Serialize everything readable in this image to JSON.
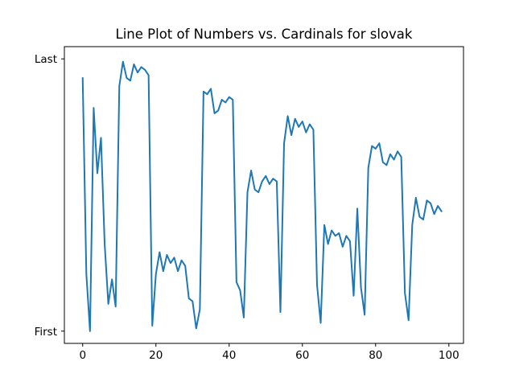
{
  "chart_data": {
    "type": "line",
    "title": "Line Plot of Numbers vs. Cardinals for slovak",
    "xlabel": "",
    "ylabel": "",
    "xlim": [
      -5,
      104
    ],
    "ylim": [
      -0.045,
      1.045
    ],
    "grid": false,
    "x_ticks": [
      0,
      20,
      40,
      60,
      80,
      100
    ],
    "x_tick_labels": [
      "0",
      "20",
      "40",
      "60",
      "80",
      "100"
    ],
    "y_ticks": [
      0,
      1
    ],
    "y_tick_labels": [
      "First",
      "Last"
    ],
    "series_color": "#1f77b4",
    "series": [
      {
        "x": [
          0,
          1,
          2,
          3,
          4,
          5,
          6,
          7,
          8,
          9,
          10,
          11,
          12,
          13,
          14,
          15,
          16,
          17,
          18,
          19,
          20,
          21,
          22,
          23,
          24,
          25,
          26,
          27,
          28,
          29,
          30,
          31,
          32,
          33,
          34,
          35,
          36,
          37,
          38,
          39,
          40,
          41,
          42,
          43,
          44,
          45,
          46,
          47,
          48,
          49,
          50,
          51,
          52,
          53,
          54,
          55,
          56,
          57,
          58,
          59,
          60,
          61,
          62,
          63,
          64,
          65,
          66,
          67,
          68,
          69,
          70,
          71,
          72,
          73,
          74,
          75,
          76,
          77,
          78,
          79,
          80,
          81,
          82,
          83,
          84,
          85,
          86,
          87,
          88,
          89,
          90,
          91,
          92,
          93,
          94,
          95,
          96,
          97,
          98
        ],
        "values": [
          0.93,
          0.21,
          0.0,
          0.82,
          0.58,
          0.71,
          0.32,
          0.1,
          0.19,
          0.09,
          0.9,
          0.99,
          0.93,
          0.92,
          0.98,
          0.95,
          0.97,
          0.96,
          0.94,
          0.02,
          0.21,
          0.29,
          0.22,
          0.28,
          0.25,
          0.27,
          0.22,
          0.26,
          0.24,
          0.12,
          0.11,
          0.01,
          0.08,
          0.88,
          0.87,
          0.89,
          0.8,
          0.81,
          0.85,
          0.84,
          0.86,
          0.85,
          0.18,
          0.15,
          0.05,
          0.51,
          0.59,
          0.52,
          0.51,
          0.55,
          0.57,
          0.54,
          0.56,
          0.55,
          0.07,
          0.69,
          0.79,
          0.72,
          0.78,
          0.75,
          0.77,
          0.73,
          0.76,
          0.74,
          0.17,
          0.03,
          0.39,
          0.32,
          0.37,
          0.35,
          0.36,
          0.31,
          0.35,
          0.33,
          0.13,
          0.45,
          0.16,
          0.06,
          0.6,
          0.68,
          0.67,
          0.69,
          0.62,
          0.61,
          0.65,
          0.63,
          0.66,
          0.64,
          0.14,
          0.04,
          0.39,
          0.49,
          0.42,
          0.41,
          0.48,
          0.47,
          0.43,
          0.46,
          0.44
        ]
      }
    ]
  }
}
